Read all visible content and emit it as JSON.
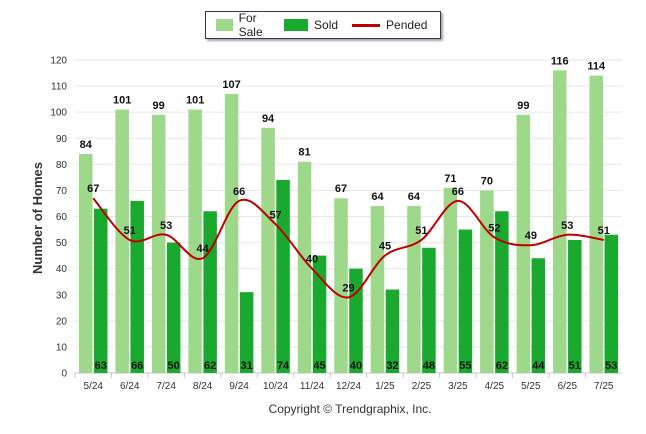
{
  "legend": {
    "for_sale": "For Sale",
    "sold": "Sold",
    "pended": "Pended"
  },
  "copyright": "Copyright © Trendgraphix, Inc.",
  "colors": {
    "for_sale": "#9ed88a",
    "sold": "#19a92f",
    "pended": "#c00000",
    "grid": "#e6e6e6"
  },
  "chart_data": {
    "type": "bar",
    "categories": [
      "5/24",
      "6/24",
      "7/24",
      "8/24",
      "9/24",
      "10/24",
      "11/24",
      "12/24",
      "1/25",
      "2/25",
      "3/25",
      "4/25",
      "5/25",
      "6/25",
      "7/25"
    ],
    "ylabel": "Number of Homes",
    "xlabel": "",
    "ylim": [
      0,
      120
    ],
    "yticks": [
      0,
      10,
      20,
      30,
      40,
      50,
      60,
      70,
      80,
      90,
      100,
      110,
      120
    ],
    "grid": true,
    "legend_position": "top-center",
    "series": [
      {
        "name": "For Sale",
        "type": "bar",
        "values": [
          84,
          101,
          99,
          101,
          107,
          94,
          81,
          67,
          64,
          64,
          71,
          70,
          99,
          116,
          114
        ]
      },
      {
        "name": "Sold",
        "type": "bar",
        "values": [
          63,
          66,
          50,
          62,
          31,
          74,
          45,
          40,
          32,
          48,
          55,
          62,
          44,
          51,
          53
        ]
      },
      {
        "name": "Pended",
        "type": "line",
        "values": [
          67,
          51,
          53,
          44,
          66,
          57,
          40,
          29,
          45,
          51,
          66,
          52,
          49,
          53,
          51
        ]
      }
    ]
  }
}
